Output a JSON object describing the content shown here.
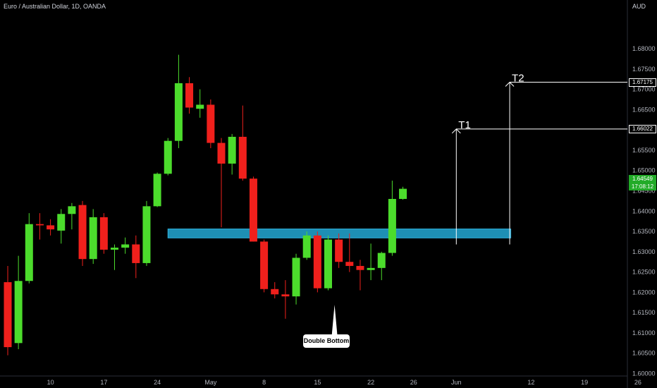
{
  "header": {
    "title": "Euro / Australian Dollar, 1D, OANDA",
    "currency": "AUD"
  },
  "current_price": {
    "price": "1.64549",
    "countdown": "17:08:12",
    "color": "#22ab28"
  },
  "colors": {
    "up": "#4cdc2c",
    "down": "#f0201c",
    "zone_fill": "#1e8fb4",
    "zone_border": "#2fb4e0",
    "background": "#000000"
  },
  "chart_data": {
    "type": "candlestick",
    "title": "Euro / Australian Dollar, 1D, OANDA",
    "ylim": [
      1.6,
      1.684
    ],
    "y_ticks": [
      "1.68000",
      "1.67500",
      "1.67000",
      "1.66500",
      "1.66000",
      "1.65500",
      "1.65000",
      "1.64500",
      "1.64000",
      "1.63500",
      "1.63000",
      "1.62500",
      "1.62000",
      "1.61500",
      "1.61000",
      "1.60500",
      "1.60000"
    ],
    "x_ticks": [
      {
        "label": "10",
        "bar": 4
      },
      {
        "label": "17",
        "bar": 9
      },
      {
        "label": "24",
        "bar": 14
      },
      {
        "label": "May",
        "bar": 19
      },
      {
        "label": "8",
        "bar": 24
      },
      {
        "label": "15",
        "bar": 29
      },
      {
        "label": "22",
        "bar": 34
      },
      {
        "label": "26",
        "bar": 38
      },
      {
        "label": "Jun",
        "bar": 42
      },
      {
        "label": "12",
        "bar": 49
      },
      {
        "label": "19",
        "bar": 54
      },
      {
        "label": "26",
        "bar": 59
      }
    ],
    "candles": [
      {
        "o": 1.6225,
        "h": 1.6265,
        "l": 1.6045,
        "c": 1.6065
      },
      {
        "o": 1.6075,
        "h": 1.629,
        "l": 1.606,
        "c": 1.6228
      },
      {
        "o": 1.6228,
        "h": 1.6395,
        "l": 1.6222,
        "c": 1.6368
      },
      {
        "o": 1.6368,
        "h": 1.6395,
        "l": 1.633,
        "c": 1.6365
      },
      {
        "o": 1.6365,
        "h": 1.638,
        "l": 1.634,
        "c": 1.6355
      },
      {
        "o": 1.6352,
        "h": 1.6405,
        "l": 1.632,
        "c": 1.6393
      },
      {
        "o": 1.6393,
        "h": 1.642,
        "l": 1.6355,
        "c": 1.6412
      },
      {
        "o": 1.6415,
        "h": 1.6425,
        "l": 1.6265,
        "c": 1.6282
      },
      {
        "o": 1.6282,
        "h": 1.6405,
        "l": 1.627,
        "c": 1.6385
      },
      {
        "o": 1.6385,
        "h": 1.6395,
        "l": 1.6295,
        "c": 1.6305
      },
      {
        "o": 1.6305,
        "h": 1.6318,
        "l": 1.6255,
        "c": 1.631
      },
      {
        "o": 1.631,
        "h": 1.6335,
        "l": 1.6295,
        "c": 1.6318
      },
      {
        "o": 1.6318,
        "h": 1.634,
        "l": 1.6235,
        "c": 1.6272
      },
      {
        "o": 1.6272,
        "h": 1.6425,
        "l": 1.6265,
        "c": 1.6412
      },
      {
        "o": 1.6412,
        "h": 1.6495,
        "l": 1.641,
        "c": 1.6492
      },
      {
        "o": 1.6492,
        "h": 1.658,
        "l": 1.6488,
        "c": 1.6573
      },
      {
        "o": 1.6573,
        "h": 1.6785,
        "l": 1.6555,
        "c": 1.6715
      },
      {
        "o": 1.6715,
        "h": 1.673,
        "l": 1.664,
        "c": 1.6655
      },
      {
        "o": 1.6652,
        "h": 1.67,
        "l": 1.663,
        "c": 1.6662
      },
      {
        "o": 1.6662,
        "h": 1.6675,
        "l": 1.6555,
        "c": 1.6568
      },
      {
        "o": 1.6568,
        "h": 1.658,
        "l": 1.636,
        "c": 1.6517
      },
      {
        "o": 1.6517,
        "h": 1.659,
        "l": 1.649,
        "c": 1.6583
      },
      {
        "o": 1.6583,
        "h": 1.666,
        "l": 1.6475,
        "c": 1.648
      },
      {
        "o": 1.648,
        "h": 1.6485,
        "l": 1.6325,
        "c": 1.6325
      },
      {
        "o": 1.6325,
        "h": 1.633,
        "l": 1.62,
        "c": 1.6208
      },
      {
        "o": 1.6208,
        "h": 1.6225,
        "l": 1.6185,
        "c": 1.6195
      },
      {
        "o": 1.6195,
        "h": 1.623,
        "l": 1.6135,
        "c": 1.619
      },
      {
        "o": 1.619,
        "h": 1.6295,
        "l": 1.617,
        "c": 1.6285
      },
      {
        "o": 1.6285,
        "h": 1.635,
        "l": 1.628,
        "c": 1.634
      },
      {
        "o": 1.634,
        "h": 1.635,
        "l": 1.62,
        "c": 1.621
      },
      {
        "o": 1.621,
        "h": 1.634,
        "l": 1.6205,
        "c": 1.633
      },
      {
        "o": 1.633,
        "h": 1.6345,
        "l": 1.626,
        "c": 1.6275
      },
      {
        "o": 1.6275,
        "h": 1.6345,
        "l": 1.625,
        "c": 1.6265
      },
      {
        "o": 1.6265,
        "h": 1.628,
        "l": 1.6205,
        "c": 1.6255
      },
      {
        "o": 1.6255,
        "h": 1.632,
        "l": 1.623,
        "c": 1.626
      },
      {
        "o": 1.626,
        "h": 1.63,
        "l": 1.623,
        "c": 1.6297
      },
      {
        "o": 1.6297,
        "h": 1.6475,
        "l": 1.629,
        "c": 1.643
      },
      {
        "o": 1.643,
        "h": 1.646,
        "l": 1.6428,
        "c": 1.6455
      }
    ],
    "zone": {
      "y_low": 1.6334,
      "y_high": 1.6356,
      "bar_start": 15.5,
      "bar_end": 47.1
    },
    "targets": [
      {
        "label": "T1",
        "price": 1.66022,
        "price_label": "1.66022",
        "bar": 42.0,
        "base": 1.6318
      },
      {
        "label": "T2",
        "price": 1.67175,
        "price_label": "1.67175",
        "bar": 47.0,
        "base": 1.6318
      }
    ],
    "annotations": [
      {
        "text": "Double Bottom",
        "bar": 30.6
      }
    ]
  }
}
